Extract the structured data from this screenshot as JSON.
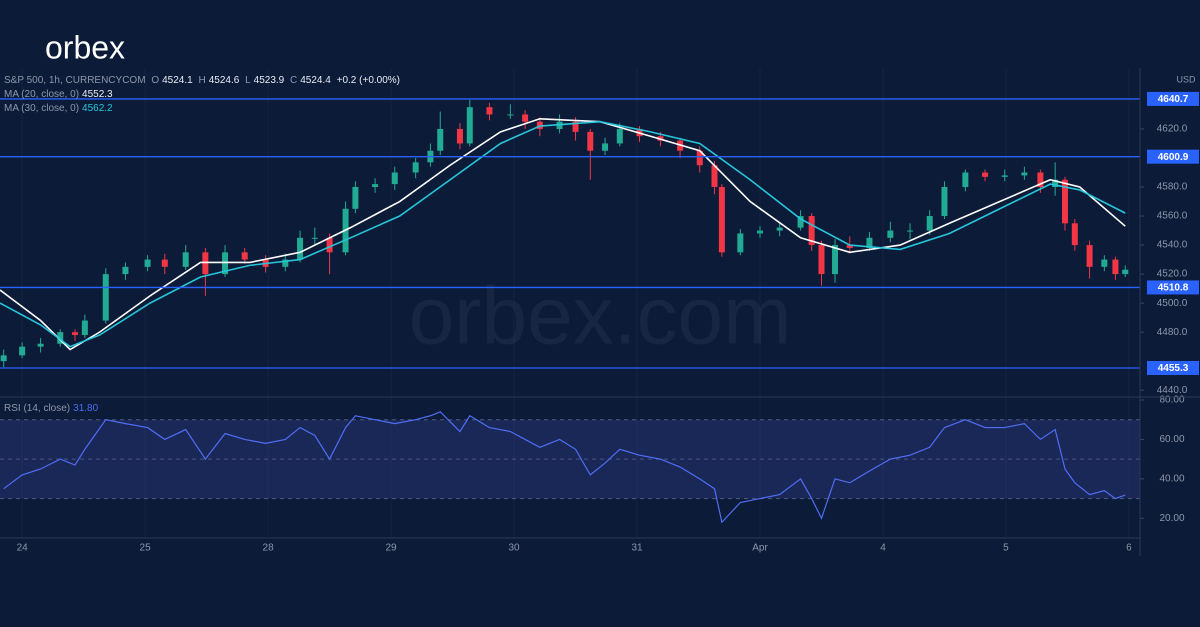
{
  "brand": "orbex",
  "watermark": "orbex.com",
  "legend": {
    "symbol": "S&P 500, 1h, CURRENCYCOM",
    "labels": [
      "O",
      "H",
      "L",
      "C"
    ],
    "values": [
      4524.1,
      4524.6,
      4523.9,
      4524.4
    ],
    "change": "+0.2 (+0.00%)"
  },
  "chart_data": [
    {
      "type": "candlestick",
      "currency": "USD",
      "ylim": [
        4436,
        4662
      ],
      "xlim": [
        -0.18,
        9.09
      ],
      "yticks": [
        {
          "value": 4440,
          "label": "4440.0"
        },
        {
          "value": 4480,
          "label": "4480.0"
        },
        {
          "value": 4500,
          "label": "4500.0"
        },
        {
          "value": 4520,
          "label": "4520.0"
        },
        {
          "value": 4540,
          "label": "4540.0"
        },
        {
          "value": 4560,
          "label": "4560.0"
        },
        {
          "value": 4580,
          "label": "4580.0"
        },
        {
          "value": 4620,
          "label": "4620.0"
        }
      ],
      "up_color": "#22ab94",
      "down_color": "#f23645",
      "x": [
        -0.15,
        0,
        0.15,
        0.31,
        0.43,
        0.51,
        0.68,
        0.84,
        1.02,
        1.16,
        1.33,
        1.49,
        1.65,
        1.81,
        1.98,
        2.14,
        2.26,
        2.38,
        2.5,
        2.63,
        2.71,
        2.87,
        3.03,
        3.2,
        3.32,
        3.4,
        3.56,
        3.64,
        3.8,
        3.97,
        4.09,
        4.21,
        4.37,
        4.5,
        4.62,
        4.74,
        4.86,
        5.02,
        5.19,
        5.35,
        5.51,
        5.63,
        5.69,
        5.84,
        6,
        6.16,
        6.33,
        6.42,
        6.5,
        6.61,
        6.73,
        6.89,
        7.06,
        7.22,
        7.38,
        7.5,
        7.67,
        7.83,
        7.99,
        8.15,
        8.28,
        8.4,
        8.48,
        8.56,
        8.68,
        8.8,
        8.89,
        8.97
      ],
      "open": [
        4460,
        4464,
        4470,
        4472,
        4480,
        4478,
        4488,
        4520,
        4525,
        4530,
        4525,
        4535,
        4520,
        4535,
        4530,
        4525,
        4530,
        4545,
        4545,
        4535,
        4565,
        4580,
        4582,
        4590,
        4597,
        4605,
        4620,
        4610,
        4635,
        4630,
        4630,
        4625,
        4620,
        4625,
        4618,
        4605,
        4610,
        4620,
        4615,
        4612,
        4605,
        4595,
        4580,
        4535,
        4548,
        4550,
        4552,
        4560,
        4540,
        4520,
        4540,
        4538,
        4545,
        4550,
        4550,
        4560,
        4580,
        4590,
        4587,
        4588,
        4590,
        4580,
        4585,
        4555,
        4540,
        4525,
        4530,
        4520
      ],
      "high": [
        4468,
        4473,
        4476,
        4482,
        4482,
        4492,
        4524,
        4528,
        4533,
        4534,
        4540,
        4538,
        4540,
        4538,
        4533,
        4534,
        4550,
        4552,
        4548,
        4570,
        4584,
        4586,
        4594,
        4600,
        4610,
        4632,
        4624,
        4640,
        4638,
        4637,
        4633,
        4628,
        4630,
        4628,
        4620,
        4614,
        4624,
        4622,
        4618,
        4614,
        4608,
        4598,
        4582,
        4551,
        4553,
        4556,
        4564,
        4562,
        4543,
        4544,
        4546,
        4549,
        4556,
        4555,
        4564,
        4584,
        4592,
        4592,
        4592,
        4594,
        4592,
        4597,
        4587,
        4558,
        4543,
        4533,
        4532,
        4526
      ],
      "low": [
        4456,
        4462,
        4466,
        4470,
        4474,
        4476,
        4486,
        4516,
        4522,
        4520,
        4523,
        4505,
        4518,
        4527,
        4521,
        4522,
        4528,
        4540,
        4520,
        4533,
        4562,
        4576,
        4578,
        4586,
        4594,
        4602,
        4606,
        4608,
        4626,
        4627,
        4620,
        4615,
        4617,
        4612,
        4585,
        4602,
        4608,
        4611,
        4608,
        4600,
        4590,
        4575,
        4532,
        4533,
        4545,
        4546,
        4550,
        4536,
        4512,
        4514,
        4534,
        4536,
        4542,
        4544,
        4547,
        4558,
        4577,
        4584,
        4584,
        4585,
        4576,
        4574,
        4550,
        4536,
        4517,
        4522,
        4516,
        4518
      ],
      "close": [
        4464,
        4470,
        4472,
        4480,
        4478,
        4488,
        4520,
        4525,
        4530,
        4525,
        4535,
        4520,
        4535,
        4530,
        4525,
        4530,
        4545,
        4545,
        4535,
        4565,
        4580,
        4582,
        4590,
        4597,
        4605,
        4620,
        4610,
        4635,
        4630,
        4630,
        4625,
        4620,
        4625,
        4618,
        4605,
        4610,
        4620,
        4615,
        4612,
        4605,
        4595,
        4580,
        4535,
        4548,
        4550,
        4552,
        4560,
        4540,
        4520,
        4540,
        4538,
        4545,
        4550,
        4550,
        4560,
        4580,
        4590,
        4587,
        4588,
        4590,
        4580,
        4585,
        4555,
        4540,
        4525,
        4530,
        4520,
        4523
      ],
      "series": [
        {
          "name": "MA (20, close, 0)",
          "color": "#ffffff",
          "legend_value": 4552.3,
          "x": [
            -0.18,
            0.15,
            0.39,
            0.63,
            1.04,
            1.45,
            1.85,
            2.26,
            2.67,
            3.07,
            3.48,
            3.89,
            4.21,
            4.7,
            5.11,
            5.51,
            5.92,
            6.33,
            6.73,
            7.14,
            7.54,
            7.95,
            8.36,
            8.6,
            8.97
          ],
          "values": [
            4509,
            4488,
            4468,
            4480,
            4505,
            4528,
            4528,
            4535,
            4552,
            4570,
            4595,
            4618,
            4627,
            4625,
            4615,
            4605,
            4570,
            4545,
            4535,
            4540,
            4555,
            4570,
            4585,
            4580,
            4553
          ]
        },
        {
          "name": "MA (30, close, 0)",
          "color": "#26c6da",
          "legend_value": 4562.2,
          "x": [
            -0.18,
            0.15,
            0.39,
            0.63,
            1.04,
            1.45,
            1.85,
            2.26,
            2.67,
            3.07,
            3.48,
            3.89,
            4.21,
            4.7,
            5.11,
            5.51,
            5.92,
            6.33,
            6.73,
            7.14,
            7.54,
            7.95,
            8.36,
            8.6,
            8.97
          ],
          "values": [
            4500,
            4485,
            4470,
            4478,
            4500,
            4518,
            4526,
            4530,
            4545,
            4560,
            4585,
            4610,
            4622,
            4625,
            4618,
            4610,
            4585,
            4558,
            4540,
            4537,
            4548,
            4565,
            4582,
            4578,
            4562
          ]
        }
      ],
      "levels": [
        {
          "value": 4640.7,
          "color": "#2962ff"
        },
        {
          "value": 4600.9,
          "color": "#2962ff"
        },
        {
          "value": 4510.8,
          "color": "#2962ff"
        },
        {
          "value": 4455.3,
          "color": "#2962ff"
        }
      ]
    },
    {
      "type": "line",
      "ylim": [
        10,
        81
      ],
      "xlim": [
        -0.18,
        9.09
      ],
      "yticks": [
        {
          "value": 80,
          "label": "80.00"
        },
        {
          "value": 60,
          "label": "60.00"
        },
        {
          "value": 40,
          "label": "40.00"
        },
        {
          "value": 20,
          "label": "20.00"
        }
      ],
      "band": [
        30,
        70
      ],
      "midline": 50,
      "band_color": "#3d4a9e",
      "xticks": [
        {
          "value": 0,
          "label": "24"
        },
        {
          "value": 1,
          "label": "25"
        },
        {
          "value": 2,
          "label": "28"
        },
        {
          "value": 3,
          "label": "29"
        },
        {
          "value": 4,
          "label": "30"
        },
        {
          "value": 5,
          "label": "31"
        },
        {
          "value": 6,
          "label": "Apr"
        },
        {
          "value": 7,
          "label": "4"
        },
        {
          "value": 8,
          "label": "5"
        },
        {
          "value": 9,
          "label": "6"
        }
      ],
      "series": [
        {
          "name": "RSI (14, close)",
          "color": "#4f6df5",
          "legend_value": "31.80",
          "x": [
            -0.15,
            0,
            0.15,
            0.31,
            0.43,
            0.51,
            0.68,
            0.84,
            1.02,
            1.16,
            1.33,
            1.49,
            1.65,
            1.81,
            1.98,
            2.14,
            2.26,
            2.38,
            2.5,
            2.63,
            2.71,
            2.87,
            3.03,
            3.2,
            3.32,
            3.4,
            3.56,
            3.64,
            3.8,
            3.97,
            4.09,
            4.21,
            4.37,
            4.5,
            4.62,
            4.74,
            4.86,
            5.02,
            5.19,
            5.35,
            5.51,
            5.63,
            5.69,
            5.84,
            6,
            6.16,
            6.33,
            6.42,
            6.5,
            6.61,
            6.73,
            6.89,
            7.06,
            7.22,
            7.38,
            7.5,
            7.67,
            7.83,
            7.99,
            8.15,
            8.28,
            8.4,
            8.48,
            8.56,
            8.68,
            8.8,
            8.89,
            8.97
          ],
          "values": [
            35,
            42,
            45,
            50,
            47,
            55,
            70,
            68,
            66,
            60,
            65,
            50,
            63,
            60,
            58,
            60,
            66,
            62,
            50,
            66,
            72,
            70,
            68,
            70,
            72,
            74,
            64,
            72,
            66,
            64,
            60,
            56,
            60,
            55,
            42,
            48,
            55,
            52,
            50,
            46,
            40,
            35,
            18,
            28,
            30,
            32,
            40,
            30,
            20,
            40,
            38,
            44,
            50,
            52,
            56,
            66,
            70,
            66,
            66,
            68,
            60,
            65,
            45,
            38,
            32,
            34,
            30,
            31.8
          ]
        }
      ]
    }
  ]
}
